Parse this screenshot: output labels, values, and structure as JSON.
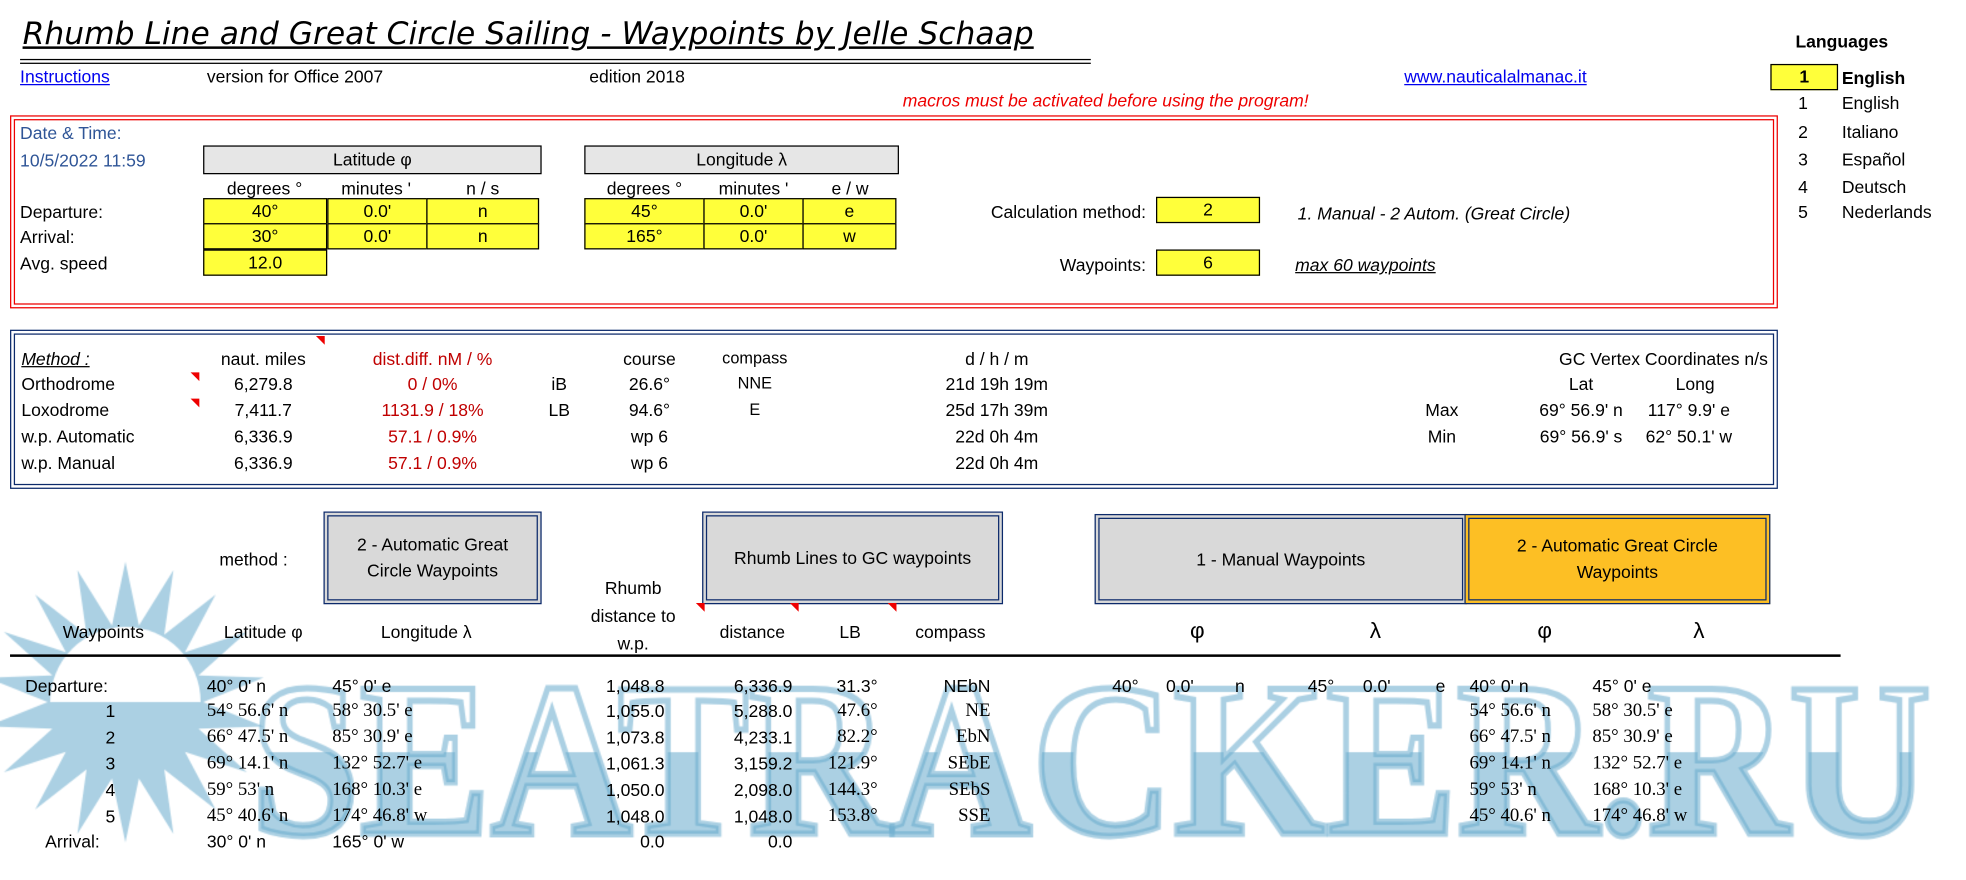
{
  "header": {
    "title": "Rhumb Line and Great Circle Sailing - Waypoints by Jelle Schaap",
    "instructions": "Instructions",
    "version": "version for Office 2007",
    "edition": "edition 2018",
    "website": "www.nauticalalmanac.it",
    "warning": "macros must be activated before using the program!"
  },
  "languages": {
    "title": "Languages",
    "selected_num": "1",
    "selected_name": "English",
    "list": [
      {
        "num": "1",
        "name": "English"
      },
      {
        "num": "2",
        "name": "Italiano"
      },
      {
        "num": "3",
        "name": "Español"
      },
      {
        "num": "4",
        "name": "Deutsch"
      },
      {
        "num": "5",
        "name": "Nederlands"
      }
    ]
  },
  "input": {
    "date_label": "Date & Time:",
    "date": "10/5/2022 11:59",
    "lat_header": "Latitude φ",
    "lon_header": "Longitude λ",
    "sub": {
      "deg": "degrees °",
      "min": "minutes '",
      "ns": "n / s",
      "ew": "e / w"
    },
    "departure_label": "Departure:",
    "arrival_label": "Arrival:",
    "speed_label": "Avg. speed",
    "departure": {
      "lat_deg": "40°",
      "lat_min": "0.0'",
      "ns": "n",
      "lon_deg": "45°",
      "lon_min": "0.0'",
      "ew": "e"
    },
    "arrival": {
      "lat_deg": "30°",
      "lat_min": "0.0'",
      "ns": "n",
      "lon_deg": "165°",
      "lon_min": "0.0'",
      "ew": "w"
    },
    "speed": "12.0",
    "calc_label": "Calculation method:",
    "calc_value": "2",
    "calc_note": "1. Manual - 2 Autom. (Great Circle)",
    "wp_label": "Waypoints:",
    "wp_value": "6",
    "wp_note": "max 60 waypoints"
  },
  "results": {
    "headers": {
      "method": "Method :",
      "miles": "naut. miles",
      "diff": "dist.diff. nM / %",
      "course": "course",
      "compass": "compass",
      "dhm": "d / h / m",
      "vertex": "GC Vertex Coordinates n/s",
      "lat": "Lat",
      "long": "Long"
    },
    "rows": [
      {
        "label": "Orthodrome",
        "miles": "6,279.8",
        "diff": "0 / 0%",
        "type": "iB",
        "course": "26.6°",
        "compass": "NNE",
        "dhm": "21d 19h 19m"
      },
      {
        "label": "Loxodrome",
        "miles": "7,411.7",
        "diff": "1131.9 / 18%",
        "type": "LB",
        "course": "94.6°",
        "compass": "E",
        "dhm": "25d 17h 39m"
      },
      {
        "label": "w.p. Automatic",
        "miles": "6,336.9",
        "diff": "57.1 / 0.9%",
        "type": "",
        "course": "wp 6",
        "compass": "",
        "dhm": "22d 0h 4m"
      },
      {
        "label": "w.p. Manual",
        "miles": "6,336.9",
        "diff": "57.1 / 0.9%",
        "type": "",
        "course": "wp 6",
        "compass": "",
        "dhm": "22d 0h 4m"
      }
    ],
    "vertex": [
      {
        "label": "Max",
        "lat": "69° 56.9' n",
        "long": "117° 9.9' e"
      },
      {
        "label": "Min",
        "lat": "69° 56.9' s",
        "long": "62° 50.1' w"
      }
    ]
  },
  "buttons": {
    "method_label": "method :",
    "auto_gc": "2 - Automatic Great Circle Waypoints",
    "rhumb": "Rhumb Lines to GC waypoints",
    "manual": "1 - Manual Waypoints",
    "auto_gc2": "2 - Automatic Great Circle Waypoints",
    "active_color": "#FDBF24"
  },
  "table": {
    "headers": {
      "wp": "Waypoints",
      "lat": "Latitude φ",
      "lon": "Longitude λ",
      "rhumb1": "Rhumb",
      "rhumb2": "distance to",
      "rhumb3": "w.p.",
      "distance": "distance",
      "lb": "LB",
      "compass": "compass",
      "phi1": "φ",
      "lambda1": "λ",
      "phi2": "φ",
      "lambda2": "λ"
    },
    "rows": [
      {
        "wp": "Departure:",
        "lat": "40° 0' n",
        "lon": "45° 0' e",
        "rhumb": "1,048.8",
        "distance": "6,336.9",
        "lb": "31.3°",
        "compass": "NEbN",
        "alat": "40° 0' n",
        "alon": "45° 0' e"
      },
      {
        "wp": "1",
        "lat": "54° 56.6' n",
        "lon": "58° 30.5' e",
        "rhumb": "1,055.0",
        "distance": "5,288.0",
        "lb": "47.6°",
        "compass": "NE",
        "alat": "54° 56.6' n",
        "alon": "58° 30.5' e"
      },
      {
        "wp": "2",
        "lat": "66° 47.5' n",
        "lon": "85° 30.9' e",
        "rhumb": "1,073.8",
        "distance": "4,233.1",
        "lb": "82.2°",
        "compass": "EbN",
        "alat": "66° 47.5' n",
        "alon": "85° 30.9' e"
      },
      {
        "wp": "3",
        "lat": "69° 14.1' n",
        "lon": "132° 52.7' e",
        "rhumb": "1,061.3",
        "distance": "3,159.2",
        "lb": "121.9°",
        "compass": "SEbE",
        "alat": "69° 14.1' n",
        "alon": "132° 52.7' e"
      },
      {
        "wp": "4",
        "lat": "59° 53' n",
        "lon": "168° 10.3' e",
        "rhumb": "1,050.0",
        "distance": "2,098.0",
        "lb": "144.3°",
        "compass": "SEbS",
        "alat": "59° 53' n",
        "alon": "168° 10.3' e"
      },
      {
        "wp": "5",
        "lat": "45° 40.6' n",
        "lon": "174° 46.8' w",
        "rhumb": "1,048.0",
        "distance": "1,048.0",
        "lb": "153.8°",
        "compass": "SSE",
        "alat": "45° 40.6' n",
        "alon": "174° 46.8' w"
      },
      {
        "wp": "Arrival:",
        "lat": "30° 0' n",
        "lon": "165° 0' w",
        "rhumb": "0.0",
        "distance": "0.0",
        "lb": "",
        "compass": "",
        "alat": "",
        "alon": ""
      }
    ],
    "manual": {
      "lat_deg": "40°",
      "lat_min": "0.0'",
      "ns": "n",
      "lon_deg": "45°",
      "lon_min": "0.0'",
      "ew": "e"
    }
  },
  "watermark": {
    "text": "SEATRACKER.RU",
    "color": "#66AACC"
  }
}
